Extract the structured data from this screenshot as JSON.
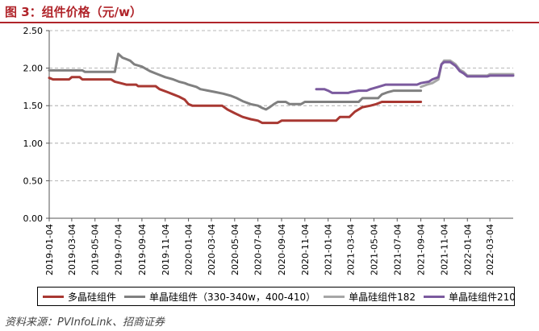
{
  "figure": {
    "title": "图 3：组件价格（元/w）",
    "source": "资料来源：PVInfoLink、招商证券"
  },
  "chart_data": {
    "type": "line",
    "title": "图 3：组件价格（元/w）",
    "xlabel": "",
    "ylabel": "",
    "ylim": [
      0,
      2.5
    ],
    "yticks": [
      "0.00",
      "0.50",
      "1.00",
      "1.50",
      "2.00",
      "2.50"
    ],
    "xlim": [
      "2019-01-04",
      "2022-05-04"
    ],
    "xticks": [
      "2019-01-04",
      "2019-03-04",
      "2019-05-04",
      "2019-07-04",
      "2019-09-04",
      "2019-11-04",
      "2020-01-04",
      "2020-03-04",
      "2020-05-04",
      "2020-07-04",
      "2020-09-04",
      "2020-11-04",
      "2021-01-04",
      "2021-03-04",
      "2021-05-04",
      "2021-07-04",
      "2021-09-04",
      "2021-11-04",
      "2022-01-04",
      "2022-03-04"
    ],
    "grid": "horizontal dashed",
    "legend_position": "bottom",
    "series": [
      {
        "name": "多晶硅组件",
        "color": "#a83832",
        "points": [
          [
            "2019-01-04",
            1.87
          ],
          [
            "2019-01-14",
            1.85
          ],
          [
            "2019-02-25",
            1.85
          ],
          [
            "2019-03-04",
            1.88
          ],
          [
            "2019-03-25",
            1.88
          ],
          [
            "2019-04-01",
            1.85
          ],
          [
            "2019-06-15",
            1.85
          ],
          [
            "2019-06-25",
            1.82
          ],
          [
            "2019-07-10",
            1.8
          ],
          [
            "2019-07-25",
            1.78
          ],
          [
            "2019-08-20",
            1.78
          ],
          [
            "2019-08-25",
            1.76
          ],
          [
            "2019-10-10",
            1.76
          ],
          [
            "2019-10-20",
            1.72
          ],
          [
            "2019-11-10",
            1.68
          ],
          [
            "2019-11-25",
            1.65
          ],
          [
            "2019-12-10",
            1.62
          ],
          [
            "2019-12-25",
            1.58
          ],
          [
            "2020-01-04",
            1.52
          ],
          [
            "2020-01-14",
            1.5
          ],
          [
            "2020-04-01",
            1.5
          ],
          [
            "2020-04-15",
            1.45
          ],
          [
            "2020-05-04",
            1.4
          ],
          [
            "2020-05-25",
            1.35
          ],
          [
            "2020-06-15",
            1.32
          ],
          [
            "2020-07-04",
            1.3
          ],
          [
            "2020-07-15",
            1.27
          ],
          [
            "2020-08-25",
            1.27
          ],
          [
            "2020-09-04",
            1.3
          ],
          [
            "2021-01-25",
            1.3
          ],
          [
            "2021-02-04",
            1.35
          ],
          [
            "2021-03-01",
            1.35
          ],
          [
            "2021-03-15",
            1.42
          ],
          [
            "2021-04-04",
            1.48
          ],
          [
            "2021-04-25",
            1.5
          ],
          [
            "2021-05-10",
            1.52
          ],
          [
            "2021-05-25",
            1.55
          ],
          [
            "2021-09-04",
            1.55
          ]
        ]
      },
      {
        "name": "单晶硅组件（330-340w，400-410）",
        "color": "#808080",
        "points": [
          [
            "2019-01-04",
            1.97
          ],
          [
            "2019-04-01",
            1.97
          ],
          [
            "2019-04-08",
            1.95
          ],
          [
            "2019-06-25",
            1.95
          ],
          [
            "2019-07-04",
            2.19
          ],
          [
            "2019-07-15",
            2.14
          ],
          [
            "2019-07-25",
            2.12
          ],
          [
            "2019-08-04",
            2.1
          ],
          [
            "2019-08-15",
            2.05
          ],
          [
            "2019-09-04",
            2.02
          ],
          [
            "2019-09-25",
            1.96
          ],
          [
            "2019-10-15",
            1.92
          ],
          [
            "2019-11-04",
            1.88
          ],
          [
            "2019-11-25",
            1.85
          ],
          [
            "2019-12-10",
            1.82
          ],
          [
            "2019-12-25",
            1.8
          ],
          [
            "2020-01-04",
            1.78
          ],
          [
            "2020-01-25",
            1.75
          ],
          [
            "2020-02-04",
            1.72
          ],
          [
            "2020-02-25",
            1.7
          ],
          [
            "2020-03-15",
            1.68
          ],
          [
            "2020-04-04",
            1.66
          ],
          [
            "2020-04-25",
            1.63
          ],
          [
            "2020-05-10",
            1.6
          ],
          [
            "2020-05-25",
            1.56
          ],
          [
            "2020-06-15",
            1.52
          ],
          [
            "2020-07-04",
            1.5
          ],
          [
            "2020-07-15",
            1.47
          ],
          [
            "2020-07-25",
            1.45
          ],
          [
            "2020-08-04",
            1.48
          ],
          [
            "2020-08-15",
            1.52
          ],
          [
            "2020-08-25",
            1.55
          ],
          [
            "2020-09-15",
            1.55
          ],
          [
            "2020-09-25",
            1.52
          ],
          [
            "2020-10-25",
            1.52
          ],
          [
            "2020-11-04",
            1.55
          ],
          [
            "2021-03-25",
            1.55
          ],
          [
            "2021-04-04",
            1.6
          ],
          [
            "2021-05-15",
            1.6
          ],
          [
            "2021-05-25",
            1.65
          ],
          [
            "2021-06-10",
            1.68
          ],
          [
            "2021-06-25",
            1.7
          ],
          [
            "2021-09-04",
            1.7
          ]
        ]
      },
      {
        "name": "单晶硅组件182",
        "color": "#a6a6a6",
        "points": [
          [
            "2021-09-04",
            1.75
          ],
          [
            "2021-09-20",
            1.78
          ],
          [
            "2021-10-04",
            1.8
          ],
          [
            "2021-10-20",
            1.85
          ],
          [
            "2021-10-28",
            2.05
          ],
          [
            "2021-11-04",
            2.1
          ],
          [
            "2021-11-20",
            2.1
          ],
          [
            "2021-12-04",
            2.05
          ],
          [
            "2021-12-15",
            1.98
          ],
          [
            "2021-12-25",
            1.95
          ],
          [
            "2022-01-04",
            1.9
          ],
          [
            "2022-02-25",
            1.9
          ],
          [
            "2022-03-04",
            1.92
          ],
          [
            "2022-05-04",
            1.92
          ]
        ]
      },
      {
        "name": "单晶硅组件210",
        "color": "#7b5a9e",
        "points": [
          [
            "2020-12-04",
            1.72
          ],
          [
            "2020-12-25",
            1.72
          ],
          [
            "2021-01-04",
            1.7
          ],
          [
            "2021-01-15",
            1.67
          ],
          [
            "2021-02-25",
            1.67
          ],
          [
            "2021-03-04",
            1.68
          ],
          [
            "2021-03-25",
            1.7
          ],
          [
            "2021-04-15",
            1.7
          ],
          [
            "2021-04-25",
            1.72
          ],
          [
            "2021-05-15",
            1.75
          ],
          [
            "2021-06-04",
            1.78
          ],
          [
            "2021-08-25",
            1.78
          ],
          [
            "2021-09-04",
            1.8
          ],
          [
            "2021-09-25",
            1.82
          ],
          [
            "2021-10-04",
            1.85
          ],
          [
            "2021-10-20",
            1.88
          ],
          [
            "2021-10-28",
            2.05
          ],
          [
            "2021-11-04",
            2.08
          ],
          [
            "2021-11-20",
            2.08
          ],
          [
            "2021-12-04",
            2.03
          ],
          [
            "2021-12-15",
            1.96
          ],
          [
            "2021-12-25",
            1.93
          ],
          [
            "2022-01-04",
            1.89
          ],
          [
            "2022-02-25",
            1.89
          ],
          [
            "2022-03-04",
            1.9
          ],
          [
            "2022-05-04",
            1.9
          ]
        ]
      }
    ]
  }
}
